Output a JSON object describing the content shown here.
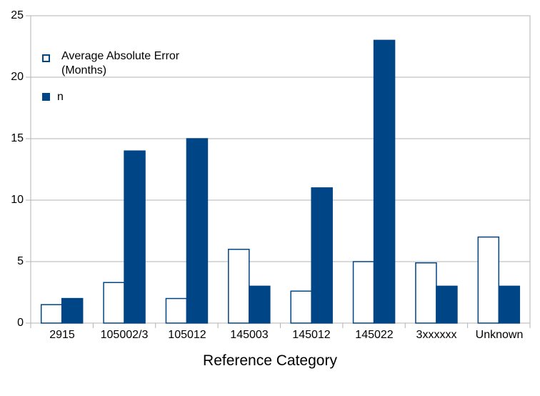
{
  "chart_data": {
    "type": "bar",
    "title": "",
    "xlabel": "Reference Category",
    "ylabel": "",
    "categories": [
      "2915",
      "105002/3",
      "105012",
      "145003",
      "145012",
      "145022",
      "3xxxxxx",
      "Unknown"
    ],
    "series": [
      {
        "name": "Average Absolute Error (Months)",
        "values": [
          1.5,
          3.3,
          2.0,
          6.0,
          2.6,
          5.0,
          4.9,
          7.0
        ],
        "fill": "#FFFFFF",
        "stroke": "#004586"
      },
      {
        "name": "n",
        "values": [
          2,
          14,
          15,
          3,
          11,
          23,
          3,
          3
        ],
        "fill": "#004586",
        "stroke": "#004586"
      }
    ],
    "ylim": [
      0,
      25
    ],
    "yticks": [
      0,
      5,
      10,
      15,
      20,
      25
    ],
    "ytick_labels": [
      "0",
      "5",
      "10",
      "15",
      "20",
      "25"
    ],
    "grid": true,
    "legend_position": "top-left-inside"
  },
  "legend": {
    "items": [
      {
        "display": "Average Absolute Error\n(Months)",
        "swatch": "outlined-square"
      },
      {
        "display": "n",
        "swatch": "filled-square"
      }
    ]
  },
  "colors": {
    "bar_blue": "#004586",
    "grid": "#b3b3b3",
    "text": "#000000",
    "background": "#ffffff"
  }
}
